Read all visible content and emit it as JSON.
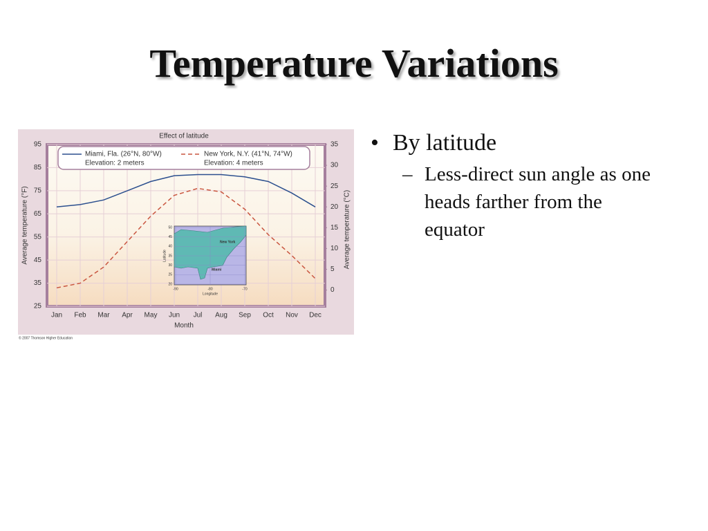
{
  "slide": {
    "title": "Temperature Variations",
    "bullets": [
      {
        "text": "By latitude",
        "sub": [
          "Less-direct sun angle as one heads farther from the equator"
        ]
      }
    ]
  },
  "chart_data": {
    "type": "line",
    "title": "Effect of latitude",
    "x_label": "Month",
    "y_label": "Average temperature (°F)",
    "y2_label": "Average temperature (°C)",
    "categories": [
      "Jan",
      "Feb",
      "Mar",
      "Apr",
      "May",
      "Jun",
      "Jul",
      "Aug",
      "Sep",
      "Oct",
      "Nov",
      "Dec"
    ],
    "series": [
      {
        "name": "Miami, Fla. (26°N, 80°W)",
        "elevation": "Elevation: 2 meters",
        "color": "#2b4f8e",
        "dash": false,
        "values": [
          68,
          69,
          71,
          75,
          79,
          81.5,
          82,
          82,
          81,
          79,
          74,
          68
        ]
      },
      {
        "name": "New York, N.Y. (41°N, 74°W)",
        "elevation": "Elevation: 4 meters",
        "color": "#c9553f",
        "dash": true,
        "values": [
          33,
          35,
          42,
          53,
          64,
          73,
          76,
          74.5,
          67,
          56,
          47,
          37
        ]
      }
    ],
    "ylim": [
      25,
      95
    ],
    "yticks": [
      25,
      35,
      45,
      55,
      65,
      75,
      85,
      95
    ],
    "y2lim": [
      -3.9,
      35
    ],
    "y2ticks": [
      0,
      5,
      10,
      15,
      20,
      25,
      30,
      35
    ],
    "grid": true,
    "inset_map": {
      "labels": [
        "New York",
        "Miami"
      ],
      "y_label": "Latitude",
      "x_label": "Longitude",
      "yticks": [
        50,
        45,
        40,
        35,
        30,
        25,
        20
      ],
      "xticks": [
        -90,
        -80,
        -70
      ]
    },
    "credit": "© 2007 Thomson Higher Education"
  }
}
